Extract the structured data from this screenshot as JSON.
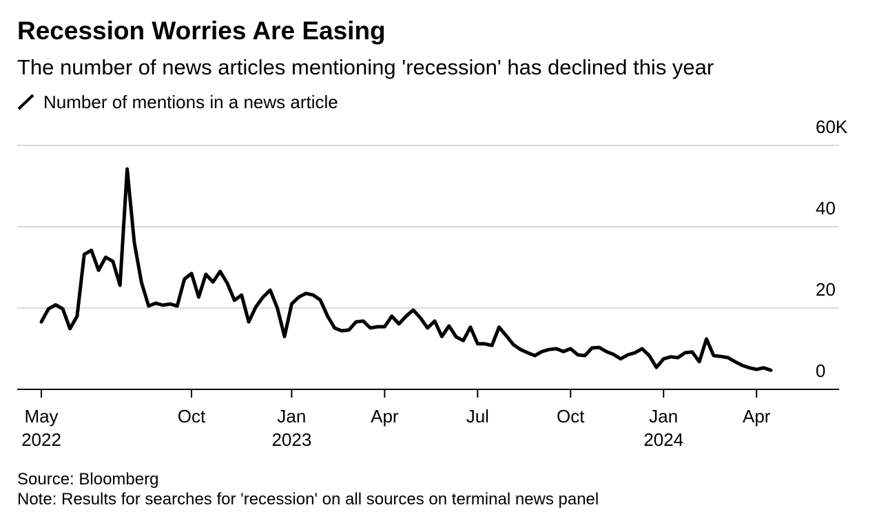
{
  "chart_data": {
    "type": "line",
    "title": "Recession Worries Are Easing",
    "subtitle": "The number of news articles mentioning 'recession' has declined this year",
    "source": "Source: Bloomberg",
    "note": "Note: Results for searches for 'recession' on all sources on terminal news panel",
    "categories": [
      "May 2022",
      null,
      null,
      null,
      null,
      null,
      null,
      null,
      null,
      null,
      null,
      null,
      null,
      null,
      null,
      null,
      null,
      null,
      null,
      null,
      null,
      "Oct",
      null,
      null,
      null,
      null,
      null,
      null,
      null,
      null,
      null,
      null,
      null,
      null,
      null,
      "Jan 2023",
      null,
      null,
      null,
      null,
      null,
      null,
      null,
      null,
      null,
      null,
      null,
      null,
      "Apr",
      null,
      null,
      null,
      null,
      null,
      null,
      null,
      null,
      null,
      null,
      null,
      null,
      "Jul",
      null,
      null,
      null,
      null,
      null,
      null,
      null,
      null,
      null,
      null,
      null,
      null,
      "Oct",
      null,
      null,
      null,
      null,
      null,
      null,
      null,
      null,
      null,
      null,
      null,
      null,
      "Jan 2024",
      null,
      null,
      null,
      null,
      null,
      null,
      null,
      null,
      null,
      null,
      null,
      null,
      "Apr",
      null,
      null
    ],
    "series": [
      {
        "name": "Number of mentions in a news article",
        "color": "#000000",
        "values": [
          16.6,
          19.8,
          20.8,
          19.8,
          14.9,
          18,
          33.2,
          34.2,
          29.3,
          32.5,
          31.5,
          25.6,
          54.2,
          36.1,
          26.3,
          20.5,
          21.2,
          20.7,
          21,
          20.5,
          27.1,
          28.5,
          22.7,
          28.3,
          26.4,
          29,
          26.1,
          21.9,
          23.2,
          16.6,
          20.3,
          22.7,
          24.4,
          20,
          13,
          21,
          22.7,
          23.6,
          23.2,
          22,
          18.1,
          15.1,
          14.4,
          14.6,
          16.6,
          16.8,
          15.1,
          15.4,
          15.4,
          18,
          16.1,
          18,
          19.5,
          17.6,
          15.1,
          16.8,
          13,
          15.6,
          12.9,
          12,
          15.3,
          11.2,
          11.2,
          10.8,
          15.3,
          13.2,
          11,
          9.8,
          9,
          8.3,
          9.3,
          9.8,
          10,
          9.3,
          10,
          8.5,
          8.3,
          10.2,
          10.3,
          9.3,
          8.6,
          7.5,
          8.5,
          9,
          10,
          8.3,
          5.4,
          7.5,
          8,
          7.8,
          9,
          9.2,
          6.8,
          12.4,
          8.3,
          8.1,
          7.8,
          6.8,
          5.9,
          5.3,
          4.9,
          5.3,
          4.7
        ]
      }
    ],
    "ylim": [
      0,
      60
    ],
    "yticks": [
      {
        "value": 60,
        "label": "60K"
      },
      40,
      20,
      0
    ],
    "grid": true,
    "legend": "top-left"
  }
}
